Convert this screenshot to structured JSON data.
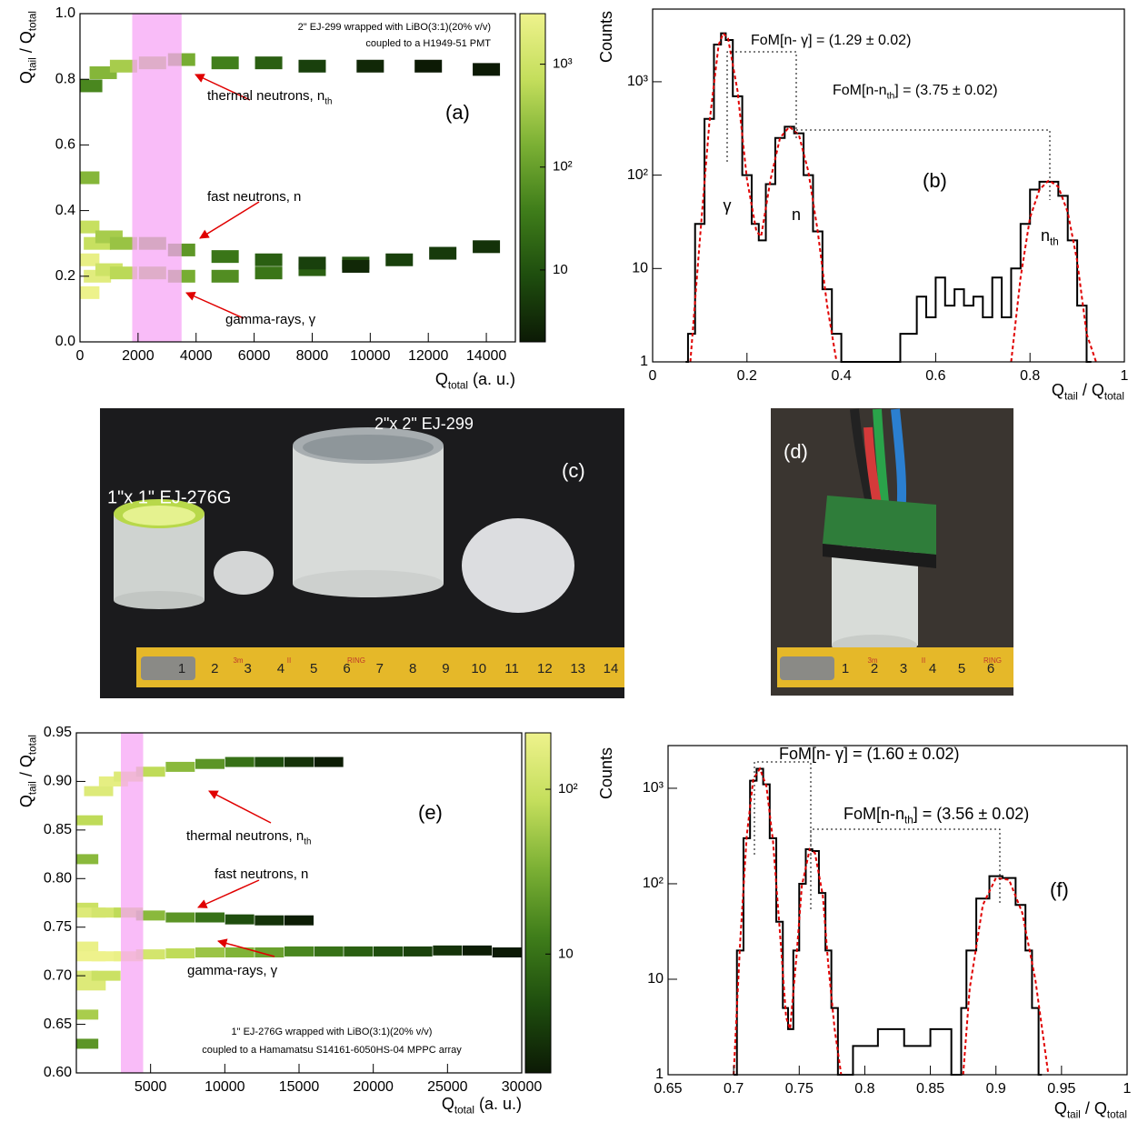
{
  "chart_data": [
    {
      "type": "hist2d",
      "xlabel": [
        "Q",
        "total",
        " (a. u.)"
      ],
      "ylabel": [
        "Q",
        "tail",
        " / Q",
        "total"
      ],
      "xlim": [
        0,
        15000
      ],
      "xticks": [
        0,
        2000,
        4000,
        6000,
        8000,
        10000,
        12000,
        14000
      ],
      "ylim": [
        0,
        1
      ],
      "yticks": [
        {
          "value": 0,
          "label": "0.0"
        },
        0.2,
        0.4,
        0.6,
        0.8,
        {
          "value": 1,
          "label": "1.0"
        }
      ],
      "zlog": true,
      "zlim": [
        2,
        3100
      ],
      "zticks": [
        10,
        {
          "value": 100,
          "label": "10²"
        },
        {
          "value": 1000,
          "label": "10³"
        }
      ],
      "highlight_x": [
        1800,
        3500
      ],
      "highlight_color": "#f7a6f5",
      "cells": {
        "x": [
          200,
          200,
          200,
          200,
          600,
          600,
          1000,
          1000,
          1500,
          1500,
          2500,
          3500,
          5000,
          6500,
          8000,
          9500,
          11000,
          12500,
          14000,
          2500,
          3500,
          5000,
          6500,
          8000,
          9500,
          300,
          800,
          1500,
          2500,
          3500,
          5000,
          6500,
          8000,
          10000,
          12000,
          14000
        ],
        "y": [
          0.15,
          0.25,
          0.35,
          0.5,
          0.2,
          0.3,
          0.22,
          0.32,
          0.21,
          0.3,
          0.21,
          0.2,
          0.2,
          0.21,
          0.22,
          0.24,
          0.25,
          0.27,
          0.29,
          0.3,
          0.28,
          0.26,
          0.25,
          0.24,
          0.23,
          0.78,
          0.82,
          0.84,
          0.85,
          0.86,
          0.85,
          0.85,
          0.84,
          0.84,
          0.84,
          0.83
        ],
        "z": [
          3000,
          2500,
          800,
          200,
          2000,
          800,
          1000,
          400,
          600,
          300,
          300,
          150,
          60,
          30,
          15,
          10,
          6,
          5,
          4,
          150,
          80,
          30,
          15,
          6,
          3,
          50,
          200,
          400,
          300,
          150,
          40,
          15,
          6,
          3,
          2,
          2
        ]
      },
      "annotations": [
        [
          "2\" EJ-299 wrapped with LiBO(3:1)(20% v/v)"
        ],
        [
          "coupled to a H1949-51 PMT"
        ],
        [
          "thermal neutrons, n",
          "th"
        ],
        [
          "fast neutrons, n"
        ],
        [
          "gamma-rays,   γ"
        ],
        [
          "(a)"
        ]
      ]
    },
    {
      "type": "line",
      "ylog": true,
      "xlabel": [
        "Q",
        "tail",
        " / Q",
        "total"
      ],
      "ylabel": [
        "Counts"
      ],
      "xlim": [
        0,
        1
      ],
      "xticks": [
        0,
        0.2,
        0.4,
        0.6,
        0.8,
        1
      ],
      "ylim": [
        1,
        6000
      ],
      "yticks": [
        1,
        10,
        {
          "value": 100,
          "label": "10²"
        },
        {
          "value": 1000,
          "label": "10³"
        }
      ],
      "series": [
        {
          "color": "#000000",
          "step": true,
          "x": [
            0.07,
            0.08,
            0.1,
            0.12,
            0.14,
            0.15,
            0.16,
            0.18,
            0.2,
            0.22,
            0.23,
            0.25,
            0.27,
            0.29,
            0.31,
            0.33,
            0.35,
            0.37,
            0.39,
            0.41,
            0.45,
            0.5,
            0.55,
            0.57,
            0.59,
            0.61,
            0.63,
            0.65,
            0.67,
            0.69,
            0.71,
            0.73,
            0.75,
            0.77,
            0.79,
            0.81,
            0.83,
            0.85,
            0.87,
            0.89,
            0.91,
            0.93
          ],
          "values": [
            1,
            2,
            30,
            400,
            2500,
            3300,
            2800,
            700,
            100,
            30,
            20,
            80,
            250,
            330,
            280,
            100,
            25,
            6,
            2,
            1,
            1,
            1,
            2,
            5,
            3,
            8,
            4,
            6,
            4,
            5,
            3,
            8,
            3,
            10,
            30,
            70,
            85,
            85,
            60,
            20,
            4,
            1
          ]
        },
        {
          "color": "#e00000",
          "dash": true,
          "x": [
            0.08,
            0.1,
            0.12,
            0.14,
            0.15,
            0.16,
            0.18,
            0.2,
            0.22,
            0.23,
            0.25,
            0.27,
            0.29,
            0.31,
            0.33,
            0.35,
            0.37,
            0.39,
            0.5,
            0.76,
            0.78,
            0.8,
            0.82,
            0.84,
            0.86,
            0.88,
            0.9,
            0.92,
            0.94
          ],
          "values": [
            1,
            20,
            350,
            2500,
            3300,
            2900,
            800,
            90,
            25,
            22,
            90,
            250,
            330,
            270,
            110,
            25,
            4,
            1,
            null,
            1,
            8,
            35,
            70,
            88,
            75,
            40,
            12,
            2,
            1
          ]
        }
      ],
      "annotations": [
        [
          "FoM[n-  γ] = (1.29 ± 0.02)"
        ],
        [
          "FoM[n-n",
          "th",
          "] = (3.75 ± 0.02)"
        ],
        [
          "γ"
        ],
        [
          "n"
        ],
        [
          "n",
          "th"
        ],
        [
          "(b)"
        ]
      ]
    },
    {
      "type": "hist2d",
      "xlabel": [
        "Q",
        "total",
        " (a. u.)"
      ],
      "ylabel": [
        "Q",
        "tail",
        " / Q",
        "total"
      ],
      "xlim": [
        0,
        30000
      ],
      "xticks": [
        5000,
        10000,
        15000,
        20000,
        25000,
        30000
      ],
      "ylim": [
        0.6,
        0.95
      ],
      "yticks": [
        {
          "value": 0.6,
          "label": "0.60"
        },
        0.65,
        {
          "value": 0.7,
          "label": "0.70"
        },
        0.75,
        {
          "value": 0.8,
          "label": "0.80"
        },
        0.85,
        {
          "value": 0.9,
          "label": "0.90"
        },
        0.95
      ],
      "zlog": true,
      "zlim": [
        1.9,
        220
      ],
      "zticks": [
        10,
        {
          "value": 100,
          "label": "10²"
        }
      ],
      "highlight_x": [
        3000,
        4500
      ],
      "highlight_color": "#f7a6f5",
      "cells": {
        "x": [
          500,
          500,
          1000,
          2000,
          3500,
          5000,
          7000,
          9000,
          11000,
          13000,
          15000,
          17000,
          19000,
          21000,
          23000,
          25000,
          27000,
          29000,
          500,
          500,
          1000,
          2000,
          500,
          1000,
          2000,
          3500,
          5000,
          7000,
          9000,
          11000,
          13000,
          15000,
          500,
          800,
          1500,
          2500,
          3500,
          5000,
          7000,
          9000,
          11000,
          13000,
          15000,
          17000
        ],
        "y": [
          0.7,
          0.73,
          0.72,
          0.72,
          0.72,
          0.722,
          0.723,
          0.724,
          0.724,
          0.724,
          0.725,
          0.725,
          0.725,
          0.725,
          0.725,
          0.726,
          0.726,
          0.724,
          0.66,
          0.63,
          0.69,
          0.7,
          0.77,
          0.765,
          0.765,
          0.765,
          0.762,
          0.76,
          0.76,
          0.758,
          0.757,
          0.757,
          0.82,
          0.86,
          0.89,
          0.9,
          0.905,
          0.91,
          0.915,
          0.918,
          0.92,
          0.92,
          0.92,
          0.92
        ],
        "z": [
          150,
          200,
          300,
          250,
          200,
          120,
          80,
          50,
          35,
          25,
          15,
          10,
          7,
          5,
          4,
          3,
          2,
          1.5,
          60,
          20,
          150,
          100,
          100,
          150,
          120,
          80,
          40,
          20,
          10,
          5,
          3,
          2,
          40,
          80,
          150,
          180,
          150,
          80,
          40,
          20,
          10,
          5,
          3,
          2
        ]
      },
      "annotations": [
        [
          "1\" EJ-276G wrapped with LiBO(3:1)(20% v/v)"
        ],
        [
          "coupled to a Hamamatsu S14161-6050HS-04 MPPC array"
        ],
        [
          "thermal neutrons, n",
          "th"
        ],
        [
          "fast neutrons, n"
        ],
        [
          "gamma-rays,   γ"
        ],
        [
          "(e)"
        ]
      ]
    },
    {
      "type": "line",
      "ylog": true,
      "xlabel": [
        "Q",
        "tail",
        " / Q",
        "total"
      ],
      "ylabel": [
        "Counts"
      ],
      "xlim": [
        0.65,
        1
      ],
      "xticks": [
        0.65,
        0.7,
        0.75,
        0.8,
        0.85,
        0.9,
        0.95,
        1
      ],
      "ylim": [
        1,
        2800
      ],
      "yticks": [
        1,
        10,
        {
          "value": 100,
          "label": "10²"
        },
        {
          "value": 1000,
          "label": "10³"
        }
      ],
      "series": [
        {
          "color": "#000000",
          "step": true,
          "x": [
            0.7,
            0.705,
            0.71,
            0.715,
            0.72,
            0.725,
            0.73,
            0.735,
            0.74,
            0.743,
            0.748,
            0.752,
            0.758,
            0.762,
            0.768,
            0.772,
            0.777,
            0.782,
            0.8,
            0.82,
            0.84,
            0.86,
            0.872,
            0.875,
            0.88,
            0.89,
            0.9,
            0.91,
            0.92,
            0.925,
            0.93,
            0.935
          ],
          "values": [
            1,
            20,
            300,
            1200,
            1600,
            1100,
            300,
            40,
            5,
            3,
            20,
            100,
            230,
            220,
            80,
            20,
            5,
            1,
            2,
            3,
            2,
            3,
            1,
            5,
            20,
            70,
            120,
            115,
            60,
            20,
            5,
            1
          ]
        },
        {
          "color": "#e00000",
          "dash": true,
          "x": [
            0.7,
            0.705,
            0.71,
            0.715,
            0.72,
            0.725,
            0.73,
            0.735,
            0.74,
            0.743,
            0.748,
            0.752,
            0.758,
            0.762,
            0.768,
            0.772,
            0.777,
            0.782,
            0.83,
            0.875,
            0.88,
            0.89,
            0.9,
            0.91,
            0.92,
            0.93,
            0.94
          ],
          "values": [
            1,
            25,
            320,
            1250,
            1600,
            1050,
            280,
            35,
            4,
            3,
            18,
            95,
            230,
            210,
            75,
            15,
            3,
            1,
            null,
            1,
            8,
            60,
            115,
            110,
            50,
            10,
            1
          ]
        }
      ],
      "annotations": [
        [
          "FoM[n-  γ] = (1.60 ± 0.02)"
        ],
        [
          "FoM[n-n",
          "th",
          "] = (3.56 ± 0.02)"
        ],
        [
          "(f)"
        ]
      ]
    }
  ],
  "photos": [
    {
      "labels": [
        "1\"x 1\" EJ-276G",
        "2\"x 2\" EJ-299",
        "(c)"
      ],
      "ruler": [
        "1",
        "2",
        "3",
        "4",
        "5",
        "6",
        "7",
        "8",
        "9",
        "10",
        "11",
        "12",
        "13",
        "14"
      ],
      "ruler_marks": [
        "3m",
        "II",
        "RING"
      ]
    },
    {
      "labels": [
        "(d)"
      ],
      "ruler": [
        "1",
        "2",
        "3",
        "4",
        "5",
        "6"
      ],
      "ruler_marks": [
        "3m",
        "II",
        "RING"
      ]
    }
  ]
}
